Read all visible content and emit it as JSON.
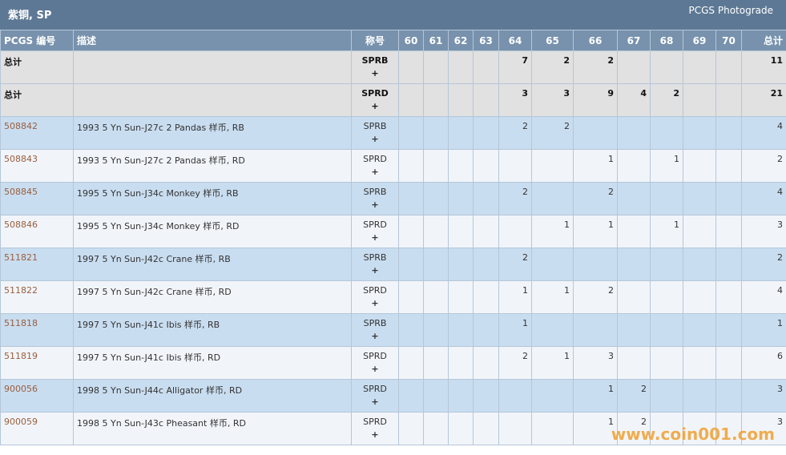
{
  "header": {
    "title": "紫铜, SP",
    "link": "PCGS Photograde"
  },
  "columns": {
    "code": "PCGS 编号",
    "description": "描述",
    "designation": "称号",
    "grades": [
      60,
      61,
      62,
      63,
      64,
      65,
      66,
      67,
      68,
      69,
      70
    ],
    "total": "总计"
  },
  "rows": [
    {
      "code": "总计",
      "designation": "SPRB",
      "expand": "+",
      "grades": [
        null,
        null,
        null,
        null,
        7,
        2,
        2,
        null,
        null,
        null,
        null
      ],
      "total": 11
    },
    {
      "code": "总计",
      "designation": "SPRD",
      "expand": "+",
      "grades": [
        null,
        null,
        null,
        null,
        3,
        3,
        9,
        4,
        2,
        null,
        null
      ],
      "total": 21
    },
    {
      "code": "508842",
      "description": "1993 5 Yn Sun-J27c 2 Pandas 样币, RB",
      "designation": "SPRB",
      "expand": "+",
      "grades": [
        null,
        null,
        null,
        null,
        2,
        2,
        null,
        null,
        null,
        null,
        null
      ],
      "total": 4
    },
    {
      "code": "508843",
      "description": "1993 5 Yn Sun-J27c 2 Pandas 样币, RD",
      "designation": "SPRD",
      "expand": "+",
      "grades": [
        null,
        null,
        null,
        null,
        null,
        null,
        1,
        null,
        1,
        null,
        null
      ],
      "total": 2
    },
    {
      "code": "508845",
      "description": "1995 5 Yn Sun-J34c Monkey 样币, RB",
      "designation": "SPRB",
      "expand": "+",
      "grades": [
        null,
        null,
        null,
        null,
        2,
        null,
        2,
        null,
        null,
        null,
        null
      ],
      "total": 4
    },
    {
      "code": "508846",
      "description": "1995 5 Yn Sun-J34c Monkey 样币, RD",
      "designation": "SPRD",
      "expand": "+",
      "grades": [
        null,
        null,
        null,
        null,
        null,
        1,
        1,
        null,
        1,
        null,
        null
      ],
      "total": 3
    },
    {
      "code": "511821",
      "description": "1997 5 Yn Sun-J42c Crane 样币, RB",
      "designation": "SPRB",
      "expand": "+",
      "grades": [
        null,
        null,
        null,
        null,
        2,
        null,
        null,
        null,
        null,
        null,
        null
      ],
      "total": 2
    },
    {
      "code": "511822",
      "description": "1997 5 Yn Sun-J42c Crane 样币, RD",
      "designation": "SPRD",
      "expand": "+",
      "grades": [
        null,
        null,
        null,
        null,
        1,
        1,
        2,
        null,
        null,
        null,
        null
      ],
      "total": 4
    },
    {
      "code": "511818",
      "description": "1997 5 Yn Sun-J41c Ibis 样币, RB",
      "designation": "SPRB",
      "expand": "+",
      "grades": [
        null,
        null,
        null,
        null,
        1,
        null,
        null,
        null,
        null,
        null,
        null
      ],
      "total": 1
    },
    {
      "code": "511819",
      "description": "1997 5 Yn Sun-J41c Ibis 样币, RD",
      "designation": "SPRD",
      "expand": "+",
      "grades": [
        null,
        null,
        null,
        null,
        2,
        1,
        3,
        null,
        null,
        null,
        null
      ],
      "total": 6
    },
    {
      "code": "900056",
      "description": "1998 5 Yn Sun-J44c Alligator 样币, RD",
      "designation": "SPRD",
      "expand": "+",
      "grades": [
        null,
        null,
        null,
        null,
        null,
        null,
        1,
        2,
        null,
        null,
        null
      ],
      "total": 3
    },
    {
      "code": "900059",
      "description": "1998 5 Yn Sun-J43c Pheasant 样币, RD",
      "designation": "SPRD",
      "expand": "+",
      "grades": [
        null,
        null,
        null,
        null,
        null,
        null,
        1,
        2,
        null,
        null,
        null
      ],
      "total": 3
    }
  ],
  "watermark": "www.coin001.com"
}
